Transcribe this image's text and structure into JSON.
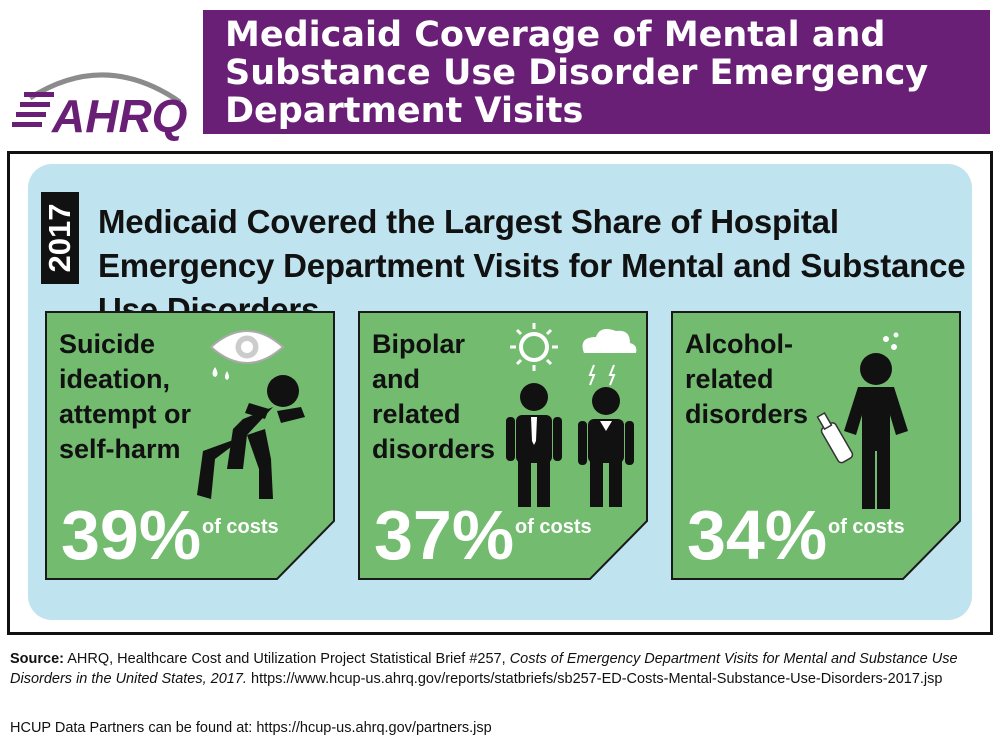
{
  "header": {
    "logo_text": "AHRQ",
    "title": "Medicaid Coverage of Mental and Substance Use Disorder Emergency Department Visits"
  },
  "panel": {
    "year": "2017",
    "title": "Medicaid Covered the Largest Share of Hospital Emergency Department Visits for Mental and Substance Use Disorders"
  },
  "cards": [
    {
      "label_lines": [
        "Suicide",
        "ideation,",
        "attempt or",
        "self-harm"
      ],
      "percent": "39%",
      "unit": "of costs",
      "icon": "person-in-pain-icon"
    },
    {
      "label_lines": [
        "Bipolar",
        "and",
        "related",
        "disorders"
      ],
      "percent": "37%",
      "unit": "of costs",
      "icon": "bipolar-people-icon"
    },
    {
      "label_lines": [
        "Alcohol-",
        "related",
        "disorders"
      ],
      "percent": "34%",
      "unit": "of costs",
      "icon": "person-with-bottle-icon"
    }
  ],
  "footer": {
    "source_label": "Source:",
    "source_text": "AHRQ, Healthcare Cost and Utilization Project Statistical Brief #257,",
    "source_title": "Costs of Emergency Department Visits for Mental and Substance Use Disorders in the United States, 2017.",
    "source_url": "https://www.hcup-us.ahrq.gov/reports/statbriefs/sb257-ED-Costs-Mental-Substance-Use-Disorders-2017.jsp",
    "partners": "HCUP Data Partners can be found at: https://hcup-us.ahrq.gov/partners.jsp"
  },
  "colors": {
    "header_purple": "#6a1f76",
    "panel_blue": "#bfe3ef",
    "card_green": "#72bb6f"
  }
}
